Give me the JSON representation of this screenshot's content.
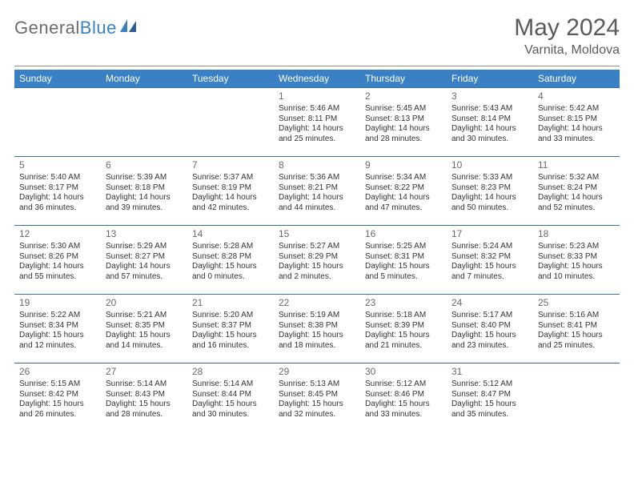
{
  "logo": {
    "word1": "General",
    "word2": "Blue"
  },
  "header": {
    "title": "May 2024",
    "location": "Varnita, Moldova"
  },
  "style": {
    "header_bg": "#3a80c4",
    "header_fg": "#ffffff",
    "row_border": "#3a6fa8",
    "body_text": "#333333",
    "daynum_color": "#6a6a6a",
    "page_bg": "#ffffff",
    "title_color": "#5a5a5a",
    "logo_gray": "#6b6b6b",
    "logo_blue": "#3a80c4"
  },
  "weekdays": [
    "Sunday",
    "Monday",
    "Tuesday",
    "Wednesday",
    "Thursday",
    "Friday",
    "Saturday"
  ],
  "weeks": [
    [
      null,
      null,
      null,
      {
        "n": "1",
        "sr": "5:46 AM",
        "ss": "8:11 PM",
        "dl": "14 hours and 25 minutes."
      },
      {
        "n": "2",
        "sr": "5:45 AM",
        "ss": "8:13 PM",
        "dl": "14 hours and 28 minutes."
      },
      {
        "n": "3",
        "sr": "5:43 AM",
        "ss": "8:14 PM",
        "dl": "14 hours and 30 minutes."
      },
      {
        "n": "4",
        "sr": "5:42 AM",
        "ss": "8:15 PM",
        "dl": "14 hours and 33 minutes."
      }
    ],
    [
      {
        "n": "5",
        "sr": "5:40 AM",
        "ss": "8:17 PM",
        "dl": "14 hours and 36 minutes."
      },
      {
        "n": "6",
        "sr": "5:39 AM",
        "ss": "8:18 PM",
        "dl": "14 hours and 39 minutes."
      },
      {
        "n": "7",
        "sr": "5:37 AM",
        "ss": "8:19 PM",
        "dl": "14 hours and 42 minutes."
      },
      {
        "n": "8",
        "sr": "5:36 AM",
        "ss": "8:21 PM",
        "dl": "14 hours and 44 minutes."
      },
      {
        "n": "9",
        "sr": "5:34 AM",
        "ss": "8:22 PM",
        "dl": "14 hours and 47 minutes."
      },
      {
        "n": "10",
        "sr": "5:33 AM",
        "ss": "8:23 PM",
        "dl": "14 hours and 50 minutes."
      },
      {
        "n": "11",
        "sr": "5:32 AM",
        "ss": "8:24 PM",
        "dl": "14 hours and 52 minutes."
      }
    ],
    [
      {
        "n": "12",
        "sr": "5:30 AM",
        "ss": "8:26 PM",
        "dl": "14 hours and 55 minutes."
      },
      {
        "n": "13",
        "sr": "5:29 AM",
        "ss": "8:27 PM",
        "dl": "14 hours and 57 minutes."
      },
      {
        "n": "14",
        "sr": "5:28 AM",
        "ss": "8:28 PM",
        "dl": "15 hours and 0 minutes."
      },
      {
        "n": "15",
        "sr": "5:27 AM",
        "ss": "8:29 PM",
        "dl": "15 hours and 2 minutes."
      },
      {
        "n": "16",
        "sr": "5:25 AM",
        "ss": "8:31 PM",
        "dl": "15 hours and 5 minutes."
      },
      {
        "n": "17",
        "sr": "5:24 AM",
        "ss": "8:32 PM",
        "dl": "15 hours and 7 minutes."
      },
      {
        "n": "18",
        "sr": "5:23 AM",
        "ss": "8:33 PM",
        "dl": "15 hours and 10 minutes."
      }
    ],
    [
      {
        "n": "19",
        "sr": "5:22 AM",
        "ss": "8:34 PM",
        "dl": "15 hours and 12 minutes."
      },
      {
        "n": "20",
        "sr": "5:21 AM",
        "ss": "8:35 PM",
        "dl": "15 hours and 14 minutes."
      },
      {
        "n": "21",
        "sr": "5:20 AM",
        "ss": "8:37 PM",
        "dl": "15 hours and 16 minutes."
      },
      {
        "n": "22",
        "sr": "5:19 AM",
        "ss": "8:38 PM",
        "dl": "15 hours and 18 minutes."
      },
      {
        "n": "23",
        "sr": "5:18 AM",
        "ss": "8:39 PM",
        "dl": "15 hours and 21 minutes."
      },
      {
        "n": "24",
        "sr": "5:17 AM",
        "ss": "8:40 PM",
        "dl": "15 hours and 23 minutes."
      },
      {
        "n": "25",
        "sr": "5:16 AM",
        "ss": "8:41 PM",
        "dl": "15 hours and 25 minutes."
      }
    ],
    [
      {
        "n": "26",
        "sr": "5:15 AM",
        "ss": "8:42 PM",
        "dl": "15 hours and 26 minutes."
      },
      {
        "n": "27",
        "sr": "5:14 AM",
        "ss": "8:43 PM",
        "dl": "15 hours and 28 minutes."
      },
      {
        "n": "28",
        "sr": "5:14 AM",
        "ss": "8:44 PM",
        "dl": "15 hours and 30 minutes."
      },
      {
        "n": "29",
        "sr": "5:13 AM",
        "ss": "8:45 PM",
        "dl": "15 hours and 32 minutes."
      },
      {
        "n": "30",
        "sr": "5:12 AM",
        "ss": "8:46 PM",
        "dl": "15 hours and 33 minutes."
      },
      {
        "n": "31",
        "sr": "5:12 AM",
        "ss": "8:47 PM",
        "dl": "15 hours and 35 minutes."
      },
      null
    ]
  ],
  "labels": {
    "sunrise": "Sunrise: ",
    "sunset": "Sunset: ",
    "daylight": "Daylight: "
  }
}
